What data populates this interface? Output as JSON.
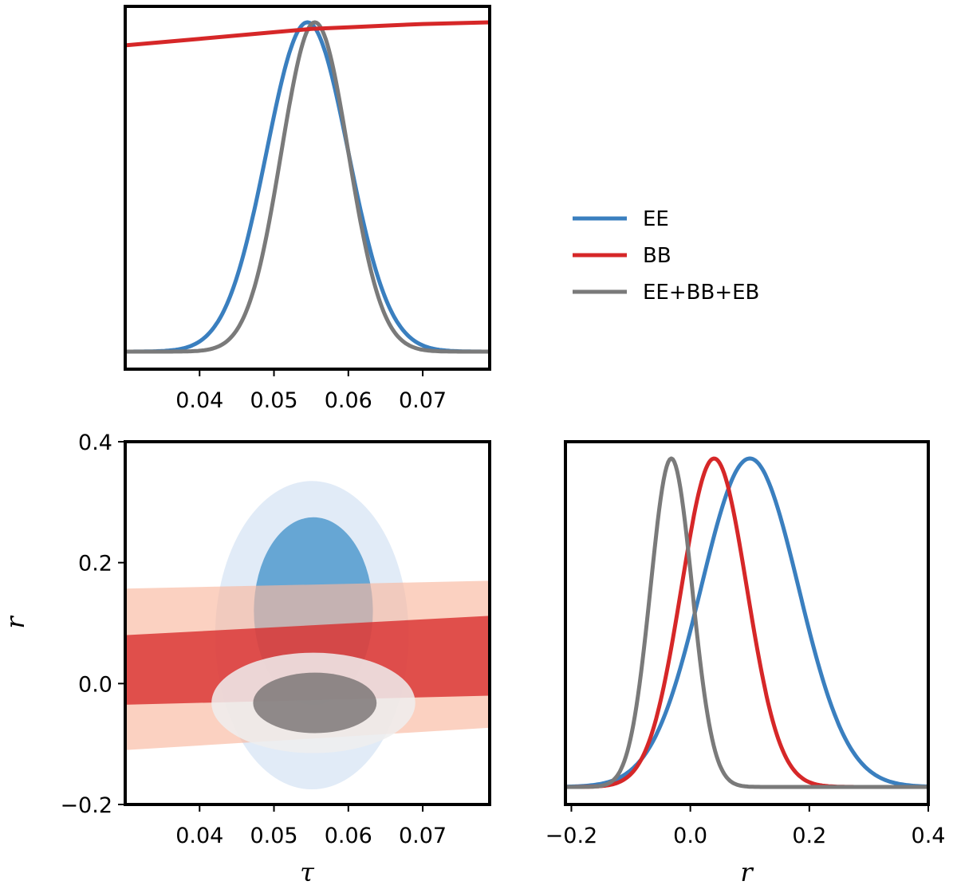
{
  "colors": {
    "EE": "#3a7fbf",
    "BB": "#d62728",
    "EEBBEB": "#7a7a7a"
  },
  "legend": [
    {
      "label": "EE",
      "color": "#3a7fbf"
    },
    {
      "label": "BB",
      "color": "#d62728"
    },
    {
      "label": "EE+BB+EB",
      "color": "#7a7a7a"
    }
  ],
  "chart_data": [
    {
      "type": "line",
      "panel": "tau-1d",
      "title": "",
      "xlabel": "",
      "ylabel": "",
      "xlim": [
        0.03,
        0.079
      ],
      "ylim": [
        0,
        1
      ],
      "xticks": [
        0.04,
        0.05,
        0.06,
        0.07
      ],
      "xtick_labels": [
        "0.04",
        "0.05",
        "0.06",
        "0.07"
      ],
      "series": [
        {
          "name": "EE",
          "kind": "gauss",
          "mean": 0.0545,
          "sigma": 0.0055
        },
        {
          "name": "EE+BB+EB",
          "kind": "gauss",
          "mean": 0.0555,
          "sigma": 0.0045
        },
        {
          "name": "BB",
          "kind": "points",
          "x": [
            0.03,
            0.04,
            0.05,
            0.055,
            0.06,
            0.065,
            0.07,
            0.079
          ],
          "y": [
            0.93,
            0.95,
            0.97,
            0.98,
            0.985,
            0.99,
            0.995,
            1.0
          ]
        }
      ]
    },
    {
      "type": "contour",
      "panel": "tau-r-2d",
      "xlabel": "τ",
      "ylabel": "r",
      "xlim": [
        0.03,
        0.079
      ],
      "ylim": [
        -0.2,
        0.4
      ],
      "xticks": [
        0.04,
        0.05,
        0.06,
        0.07
      ],
      "xtick_labels": [
        "0.04",
        "0.05",
        "0.06",
        "0.07"
      ],
      "yticks": [
        -0.2,
        0.0,
        0.2,
        0.4
      ],
      "ytick_labels": [
        "−0.2",
        "0.0",
        "0.2",
        "0.4"
      ],
      "series": [
        {
          "name": "EE",
          "level": "95%",
          "cx": 0.0551,
          "cy": 0.08,
          "rx": 0.013,
          "ry": 0.255
        },
        {
          "name": "EE",
          "level": "68%",
          "cx": 0.0553,
          "cy": 0.12,
          "rx": 0.008,
          "ry": 0.155
        },
        {
          "name": "BB",
          "level": "95%",
          "x": [
            0.03,
            0.079
          ],
          "upper": [
            0.157,
            0.17
          ],
          "lower": [
            -0.11,
            -0.073
          ]
        },
        {
          "name": "BB",
          "level": "68%",
          "x": [
            0.03,
            0.079
          ],
          "upper": [
            0.08,
            0.112
          ],
          "lower": [
            -0.035,
            -0.02
          ]
        },
        {
          "name": "EE+BB+EB",
          "level": "95%",
          "cx": 0.0553,
          "cy": -0.032,
          "rx": 0.0137,
          "ry": 0.083
        },
        {
          "name": "EE+BB+EB",
          "level": "68%",
          "cx": 0.0555,
          "cy": -0.032,
          "rx": 0.0083,
          "ry": 0.05
        }
      ]
    },
    {
      "type": "line",
      "panel": "r-1d",
      "xlabel": "r",
      "ylabel": "",
      "xlim": [
        -0.21,
        0.4
      ],
      "ylim": [
        0,
        1
      ],
      "xticks": [
        -0.2,
        0.0,
        0.2,
        0.4
      ],
      "xtick_labels": [
        "−0.2",
        "0.0",
        "0.2",
        "0.4"
      ],
      "series": [
        {
          "name": "EE",
          "kind": "gauss",
          "mean": 0.1,
          "sigma": 0.082
        },
        {
          "name": "BB",
          "kind": "gauss",
          "mean": 0.04,
          "sigma": 0.055
        },
        {
          "name": "EE+BB+EB",
          "kind": "gauss",
          "mean": -0.032,
          "sigma": 0.035
        }
      ]
    }
  ]
}
